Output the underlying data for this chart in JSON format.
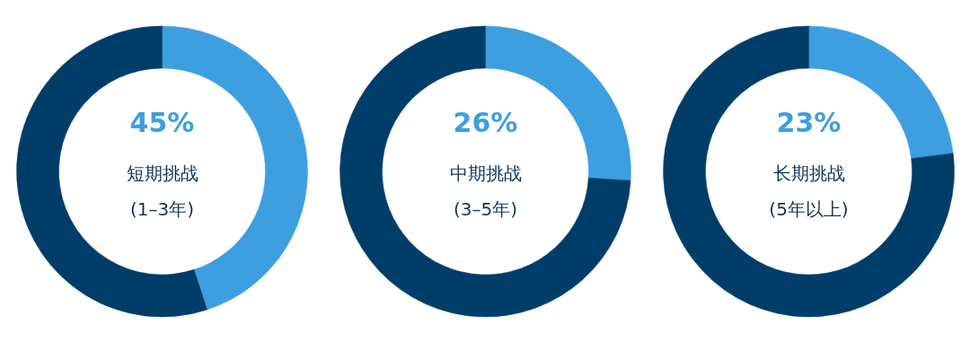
{
  "chart_data": [
    {
      "type": "donut",
      "title": "短期挑战",
      "subtitle": "(1–3年)",
      "categories": [
        null,
        null
      ],
      "values": [
        45,
        55
      ],
      "colors": [
        "#3d9fe0",
        "#003e69"
      ],
      "value_labels": [
        "45%",
        null
      ]
    },
    {
      "type": "donut",
      "title": "中期挑战",
      "subtitle": "(3–5年)",
      "categories": [
        null,
        null
      ],
      "values": [
        26,
        74
      ],
      "colors": [
        "#3d9fe0",
        "#003e69"
      ],
      "value_labels": [
        "26%",
        null
      ]
    },
    {
      "type": "donut",
      "title": "长期挑战",
      "subtitle": "(5年以上)",
      "categories": [
        null,
        null
      ],
      "values": [
        23,
        77
      ],
      "colors": [
        "#3d9fe0",
        "#003e69"
      ],
      "value_labels": [
        "23%",
        null
      ]
    }
  ]
}
